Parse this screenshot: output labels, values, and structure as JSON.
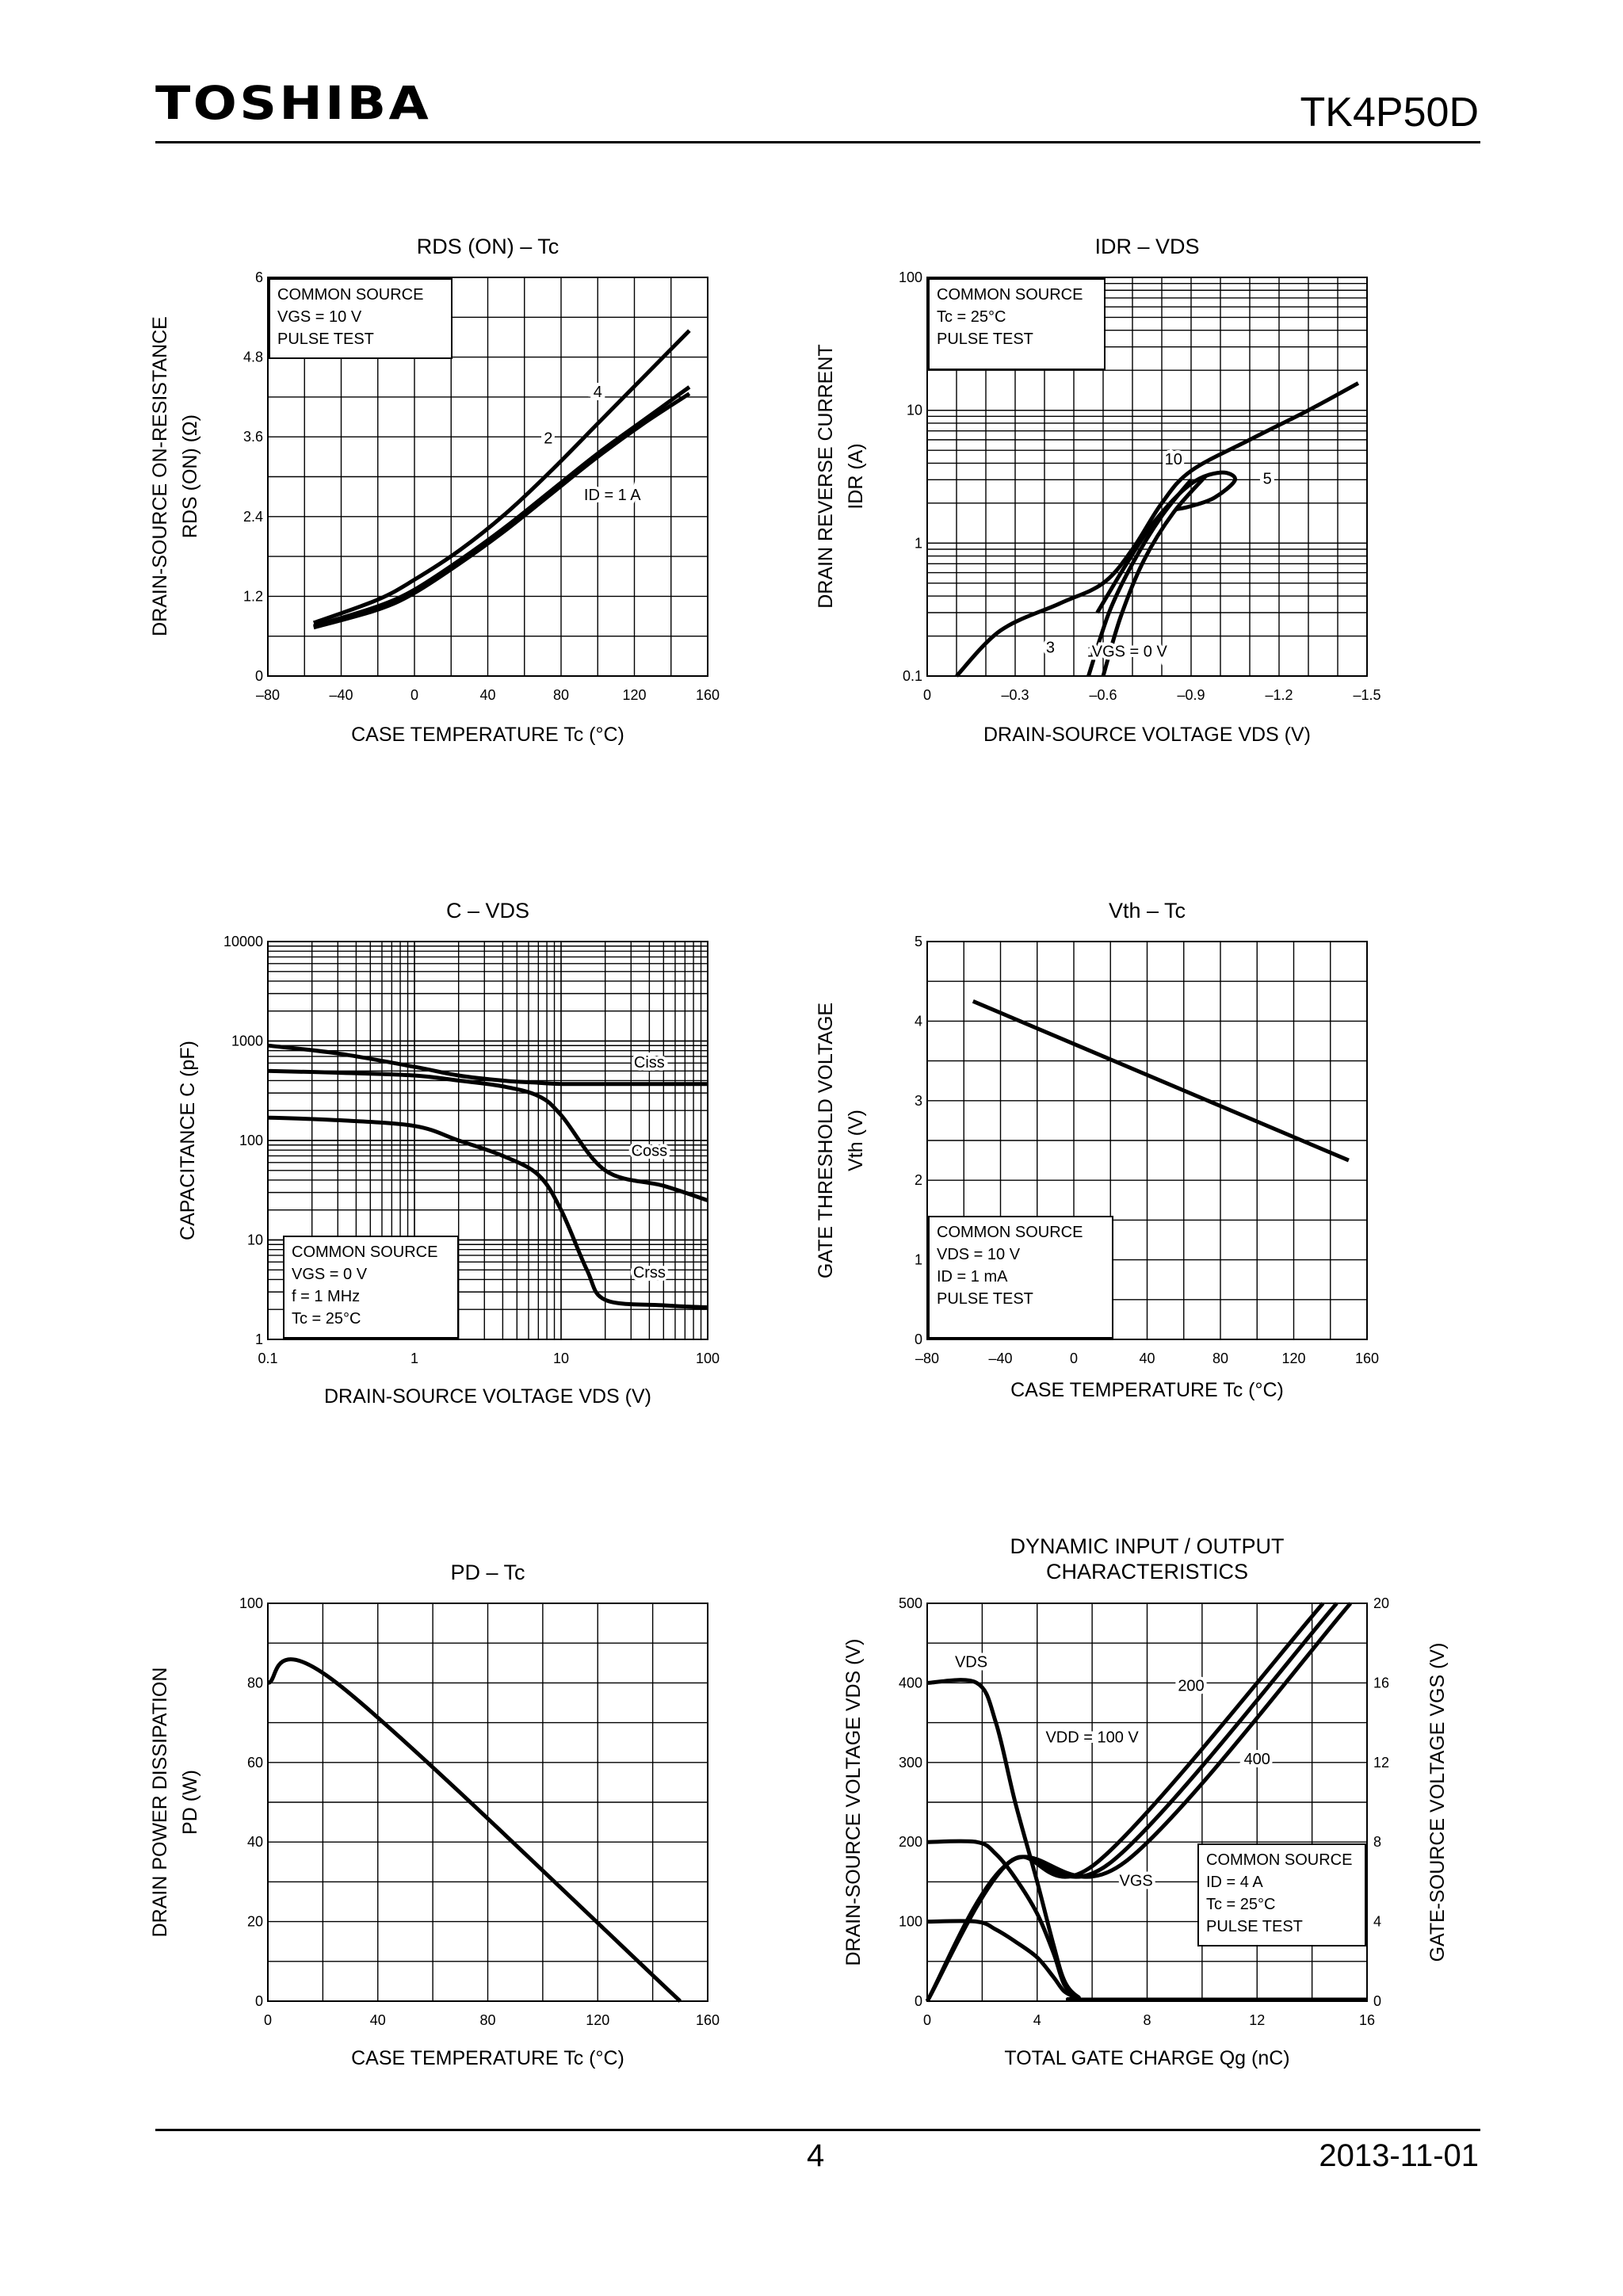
{
  "header": {
    "brand": "TOSHIBA",
    "part_number": "TK4P50D"
  },
  "footer": {
    "page": "4",
    "date": "2013-11-01"
  },
  "chart_data": [
    {
      "id": "rds-tc",
      "type": "line",
      "title": "RDS (ON) – Tc",
      "xlabel": "CASE TEMPERATURE    Tc    (°C)",
      "ylabel": "DRAIN-SOURCE ON-RESISTANCE",
      "ylabel2": "RDS (ON)    (Ω)",
      "xscale": "linear",
      "yscale": "linear",
      "xlim": [
        -80,
        160
      ],
      "ylim": [
        0,
        6
      ],
      "xticks": [
        -80,
        -40,
        0,
        40,
        80,
        120,
        160
      ],
      "xtick_labels": [
        "–80",
        "–40",
        "0",
        "40",
        "80",
        "120",
        "160"
      ],
      "yticks": [
        0,
        1.2,
        2.4,
        3.6,
        4.8,
        6
      ],
      "ytick_labels": [
        "0",
        "1.2",
        "2.4",
        "3.6",
        "4.8",
        "6"
      ],
      "xgrid": [
        -80,
        -60,
        -40,
        -20,
        0,
        20,
        40,
        60,
        80,
        100,
        120,
        140,
        160
      ],
      "ygrid": [
        0,
        0.6,
        1.2,
        1.8,
        2.4,
        3.0,
        3.6,
        4.2,
        4.8,
        5.4,
        6.0
      ],
      "conditions": [
        "COMMON SOURCE",
        "VGS = 10 V",
        "PULSE TEST"
      ],
      "series": [
        {
          "name": "4",
          "x": [
            -55,
            -20,
            0,
            25,
            50,
            75,
            100,
            125,
            150
          ],
          "y": [
            0.8,
            1.15,
            1.45,
            1.9,
            2.45,
            3.1,
            3.8,
            4.5,
            5.2
          ]
        },
        {
          "name": "2",
          "x": [
            -55,
            -20,
            0,
            25,
            50,
            75,
            100,
            125,
            150
          ],
          "y": [
            0.75,
            1.05,
            1.3,
            1.75,
            2.25,
            2.8,
            3.35,
            3.85,
            4.35
          ]
        },
        {
          "name": "ID = 1 A",
          "x": [
            -55,
            -20,
            0,
            25,
            50,
            75,
            100,
            125,
            150
          ],
          "y": [
            0.73,
            1.0,
            1.25,
            1.7,
            2.2,
            2.75,
            3.3,
            3.8,
            4.25
          ]
        }
      ],
      "annotations": [
        {
          "text": "4",
          "x": 100,
          "y": 4.2
        },
        {
          "text": "2",
          "x": 73,
          "y": 3.5
        },
        {
          "text": "ID = 1 A",
          "x": 108,
          "y": 2.65
        }
      ]
    },
    {
      "id": "idr-vds",
      "type": "line",
      "title": "IDR – VDS",
      "xlabel": "DRAIN-SOURCE VOLTAGE    VDS    (V)",
      "ylabel": "DRAIN REVERSE CURRENT",
      "ylabel2": "IDR    (A)",
      "xscale": "linear",
      "yscale": "log",
      "xlim": [
        0,
        -1.5
      ],
      "ylim": [
        0.1,
        100
      ],
      "xticks": [
        0,
        -0.3,
        -0.6,
        -0.9,
        -1.2,
        -1.5
      ],
      "xtick_labels": [
        "0",
        "–0.3",
        "–0.6",
        "–0.9",
        "–1.2",
        "–1.5"
      ],
      "yticks": [
        0.1,
        1,
        10,
        100
      ],
      "ytick_labels": [
        "0.1",
        "1",
        "10",
        "100"
      ],
      "xgrid": [
        0,
        -0.1,
        -0.2,
        -0.3,
        -0.4,
        -0.5,
        -0.6,
        -0.7,
        -0.8,
        -0.9,
        -1.0,
        -1.1,
        -1.2,
        -1.3,
        -1.4,
        -1.5
      ],
      "conditions": [
        "COMMON SOURCE",
        "Tc = 25°C",
        "PULSE TEST"
      ],
      "series": [
        {
          "name": "10",
          "x": [
            -0.1,
            -0.25,
            -0.45,
            -0.6,
            -0.7,
            -0.8,
            -0.9,
            -1.1,
            -1.3,
            -1.47
          ],
          "y": [
            0.1,
            0.22,
            0.35,
            0.5,
            0.9,
            2.0,
            3.5,
            6.0,
            10.0,
            16.0
          ]
        },
        {
          "name": "5",
          "x": [
            -0.58,
            -0.68,
            -0.78,
            -0.9,
            -1.0,
            -1.05,
            -0.98,
            -0.9,
            -0.85
          ],
          "y": [
            0.3,
            0.7,
            1.5,
            2.8,
            3.4,
            3.0,
            2.2,
            1.9,
            1.8
          ]
        },
        {
          "name": "3",
          "x": [
            -0.55,
            -0.62,
            -0.7,
            -0.8,
            -0.9
          ],
          "y": [
            0.1,
            0.3,
            0.7,
            1.6,
            3.0
          ]
        },
        {
          "name": "1",
          "x": [
            -0.6,
            -0.66,
            -0.74,
            -0.84,
            -0.95
          ],
          "y": [
            0.1,
            0.28,
            0.75,
            1.7,
            3.2
          ]
        }
      ],
      "annotations": [
        {
          "text": "10",
          "x": -0.84,
          "y": 3.9
        },
        {
          "text": "5",
          "x": -1.16,
          "y": 2.8
        },
        {
          "text": "3",
          "x": -0.42,
          "y": 0.15
        },
        {
          "text": "1",
          "x": -0.56,
          "y": 0.14
        },
        {
          "text": "VGS = 0 V",
          "x": -0.69,
          "y": 0.14
        }
      ]
    },
    {
      "id": "c-vds",
      "type": "line",
      "title": "C – VDS",
      "xlabel": "DRAIN-SOURCE VOLTAGE    VDS    (V)",
      "ylabel": "CAPACITANCE    C    (pF)",
      "ylabel2": "",
      "xscale": "log",
      "yscale": "log",
      "xlim": [
        0.1,
        100
      ],
      "ylim": [
        1,
        10000
      ],
      "xticks": [
        0.1,
        1,
        10,
        100
      ],
      "xtick_labels": [
        "0.1",
        "1",
        "10",
        "100"
      ],
      "yticks": [
        1,
        10,
        100,
        1000,
        10000
      ],
      "ytick_labels": [
        "1",
        "10",
        "100",
        "1000",
        "10000"
      ],
      "conditions": [
        "COMMON SOURCE",
        "VGS = 0 V",
        "f = 1 MHz",
        "Tc = 25°C"
      ],
      "series": [
        {
          "name": "Ciss",
          "x": [
            0.1,
            0.3,
            1,
            2,
            4,
            7,
            10,
            20,
            50,
            100
          ],
          "y": [
            900,
            750,
            550,
            450,
            400,
            380,
            370,
            370,
            370,
            370
          ]
        },
        {
          "name": "Coss",
          "x": [
            0.1,
            0.3,
            1,
            2,
            4,
            7,
            10,
            20,
            50,
            100
          ],
          "y": [
            500,
            480,
            450,
            400,
            350,
            280,
            180,
            50,
            35,
            25
          ]
        },
        {
          "name": "Crss",
          "x": [
            0.1,
            0.3,
            1,
            2,
            4,
            7,
            10,
            15,
            20,
            50,
            100
          ],
          "y": [
            170,
            160,
            140,
            100,
            70,
            45,
            20,
            5,
            2.5,
            2.2,
            2.1
          ]
        }
      ],
      "annotations": [
        {
          "text": "Ciss",
          "x": 40,
          "y": 540
        },
        {
          "text": "Coss",
          "x": 40,
          "y": 70
        },
        {
          "text": "Crss",
          "x": 40,
          "y": 4.2
        }
      ]
    },
    {
      "id": "vth-tc",
      "type": "line",
      "title": "Vth – Tc",
      "xlabel": "CASE TEMPERATURE    Tc    (°C)",
      "ylabel": "GATE THRESHOLD VOLTAGE",
      "ylabel2": "Vth    (V)",
      "xscale": "linear",
      "yscale": "linear",
      "xlim": [
        -80,
        160
      ],
      "ylim": [
        0,
        5
      ],
      "xticks": [
        -80,
        -40,
        0,
        40,
        80,
        120,
        160
      ],
      "xtick_labels": [
        "–80",
        "–40",
        "0",
        "40",
        "80",
        "120",
        "160"
      ],
      "yticks": [
        0,
        1,
        2,
        3,
        4,
        5
      ],
      "ytick_labels": [
        "0",
        "1",
        "2",
        "3",
        "4",
        "5"
      ],
      "xgrid": [
        -80,
        -60,
        -40,
        -20,
        0,
        20,
        40,
        60,
        80,
        100,
        120,
        140,
        160
      ],
      "ygrid": [
        0,
        0.5,
        1,
        1.5,
        2,
        2.5,
        3,
        3.5,
        4,
        4.5,
        5
      ],
      "conditions": [
        "COMMON SOURCE",
        "VDS = 10 V",
        "ID = 1 mA",
        "PULSE TEST"
      ],
      "series": [
        {
          "name": "Vth",
          "x": [
            -55,
            150
          ],
          "y": [
            4.25,
            2.25
          ]
        }
      ],
      "annotations": []
    },
    {
      "id": "pd-tc",
      "type": "line",
      "title": "PD – Tc",
      "xlabel": "CASE TEMPERATURE    Tc    (°C)",
      "ylabel": "DRAIN POWER DISSIPATION",
      "ylabel2": "PD    (W)",
      "xscale": "linear",
      "yscale": "linear",
      "xlim": [
        0,
        160
      ],
      "ylim": [
        0,
        100
      ],
      "xticks": [
        0,
        40,
        80,
        120,
        160
      ],
      "xtick_labels": [
        "0",
        "40",
        "80",
        "120",
        "160"
      ],
      "yticks": [
        0,
        20,
        40,
        60,
        80,
        100
      ],
      "ytick_labels": [
        "0",
        "20",
        "40",
        "60",
        "80",
        "100"
      ],
      "xgrid": [
        0,
        20,
        40,
        60,
        80,
        100,
        120,
        140,
        160
      ],
      "ygrid": [
        0,
        10,
        20,
        30,
        40,
        50,
        60,
        70,
        80,
        90,
        100
      ],
      "conditions": [],
      "series": [
        {
          "name": "PD",
          "x": [
            0,
            25,
            150
          ],
          "y": [
            80,
            80,
            0
          ]
        }
      ],
      "annotations": []
    },
    {
      "id": "dynamic",
      "type": "line",
      "title": "DYNAMIC INPUT / OUTPUT",
      "title2": "CHARACTERISTICS",
      "xlabel": "TOTAL GATE CHARGE    Qg    (nC)",
      "ylabel": "DRAIN-SOURCE VOLTAGE    VDS    (V)",
      "ylabel2": "",
      "y2label": "GATE-SOURCE VOLTAGE    VGS    (V)",
      "xscale": "linear",
      "yscale": "linear",
      "xlim": [
        0,
        16
      ],
      "ylim": [
        0,
        500
      ],
      "y2lim": [
        0,
        20
      ],
      "xticks": [
        0,
        4,
        8,
        12,
        16
      ],
      "xtick_labels": [
        "0",
        "4",
        "8",
        "12",
        "16"
      ],
      "yticks": [
        0,
        100,
        200,
        300,
        400,
        500
      ],
      "ytick_labels": [
        "0",
        "100",
        "200",
        "300",
        "400",
        "500"
      ],
      "y2ticks": [
        0,
        4,
        8,
        12,
        16,
        20
      ],
      "y2tick_labels": [
        "0",
        "4",
        "8",
        "12",
        "16",
        "20"
      ],
      "xgrid": [
        0,
        2,
        4,
        6,
        8,
        10,
        12,
        14,
        16
      ],
      "ygrid": [
        0,
        50,
        100,
        150,
        200,
        250,
        300,
        350,
        400,
        450,
        500
      ],
      "conditions": [
        "COMMON SOURCE",
        "ID = 4 A",
        "Tc = 25°C",
        "PULSE TEST"
      ],
      "series": [
        {
          "name": "VDS 400",
          "axis": "y",
          "x": [
            0,
            1.8,
            2.5,
            3.2,
            4,
            4.6,
            5,
            5.5,
            6,
            16
          ],
          "y": [
            400,
            400,
            350,
            250,
            150,
            70,
            25,
            5,
            2,
            2
          ]
        },
        {
          "name": "VDS 200",
          "axis": "y",
          "x": [
            0,
            1.8,
            2.5,
            3.2,
            4,
            4.6,
            5,
            5.5,
            6,
            16
          ],
          "y": [
            200,
            200,
            185,
            155,
            110,
            60,
            20,
            5,
            2,
            2
          ]
        },
        {
          "name": "VDS 100",
          "axis": "y",
          "x": [
            0,
            1.8,
            2.5,
            3.2,
            4,
            4.6,
            5,
            5.5,
            6,
            16
          ],
          "y": [
            100,
            100,
            90,
            75,
            55,
            30,
            12,
            4,
            2,
            2
          ]
        },
        {
          "name": "VGS 100",
          "axis": "y2",
          "x": [
            0,
            3,
            6.2,
            14.4
          ],
          "y": [
            0,
            7,
            7,
            20
          ]
        },
        {
          "name": "VGS 200",
          "axis": "y2",
          "x": [
            0,
            3,
            6.7,
            14.9
          ],
          "y": [
            0,
            7,
            7,
            20
          ]
        },
        {
          "name": "VGS 400",
          "axis": "y2",
          "x": [
            0,
            3,
            7.2,
            15.4
          ],
          "y": [
            0,
            7,
            7,
            20
          ]
        }
      ],
      "annotations": [
        {
          "text": "VDS",
          "x": 1.6,
          "y": 420
        },
        {
          "text": "200",
          "x": 9.6,
          "y": 390
        },
        {
          "text": "VDD = 100 V",
          "x": 6.0,
          "y": 325
        },
        {
          "text": "400",
          "x": 12.0,
          "y": 298
        },
        {
          "text": "VGS",
          "x": 7.6,
          "y": 145
        }
      ]
    }
  ]
}
